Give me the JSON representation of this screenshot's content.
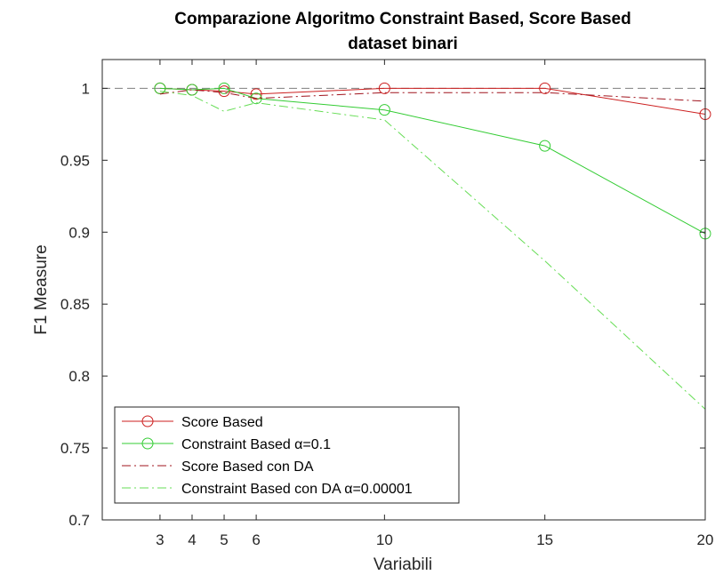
{
  "chart_data": {
    "type": "line",
    "title": "Comparazione Algoritmo Constraint Based, Score Based",
    "subtitle": "dataset binari",
    "xlabel": "Variabili",
    "ylabel": "F1 Measure",
    "x": [
      3,
      4,
      5,
      6,
      10,
      15,
      20
    ],
    "xlim": [
      1.2,
      20
    ],
    "ylim": [
      0.7,
      1.02
    ],
    "xticks": [
      3,
      4,
      5,
      6,
      10,
      15,
      20
    ],
    "yticks": [
      0.7,
      0.75,
      0.8,
      0.85,
      0.9,
      0.95,
      1
    ],
    "ytick_labels": [
      "0.7",
      "0.75",
      "0.8",
      "0.85",
      "0.9",
      "0.95",
      "1"
    ],
    "reference_line": 1,
    "reference_color": "#7f7f7f",
    "grid": false,
    "legend_position": "bottom-left",
    "series": [
      {
        "name": "Score Based",
        "values": [
          1.0,
          0.999,
          0.998,
          0.996,
          1.0,
          1.0,
          0.982
        ],
        "color": "#cc1f1f",
        "style": "solid",
        "marker": "circle"
      },
      {
        "name": "Constraint Based α=0.1",
        "values": [
          1.0,
          0.999,
          1.0,
          0.993,
          0.985,
          0.96,
          0.899
        ],
        "color": "#33cc33",
        "style": "solid",
        "marker": "circle"
      },
      {
        "name": "Score Based con DA",
        "values": [
          0.996,
          0.999,
          0.997,
          0.993,
          0.997,
          0.997,
          0.991
        ],
        "color": "#a0141e",
        "style": "dashdot",
        "marker": "none"
      },
      {
        "name": "Constraint Based con DA α=0.00001",
        "values": [
          0.998,
          0.995,
          0.984,
          0.99,
          0.978,
          0.88,
          0.777
        ],
        "color": "#66dd55",
        "style": "dashdot",
        "marker": "none"
      }
    ]
  }
}
